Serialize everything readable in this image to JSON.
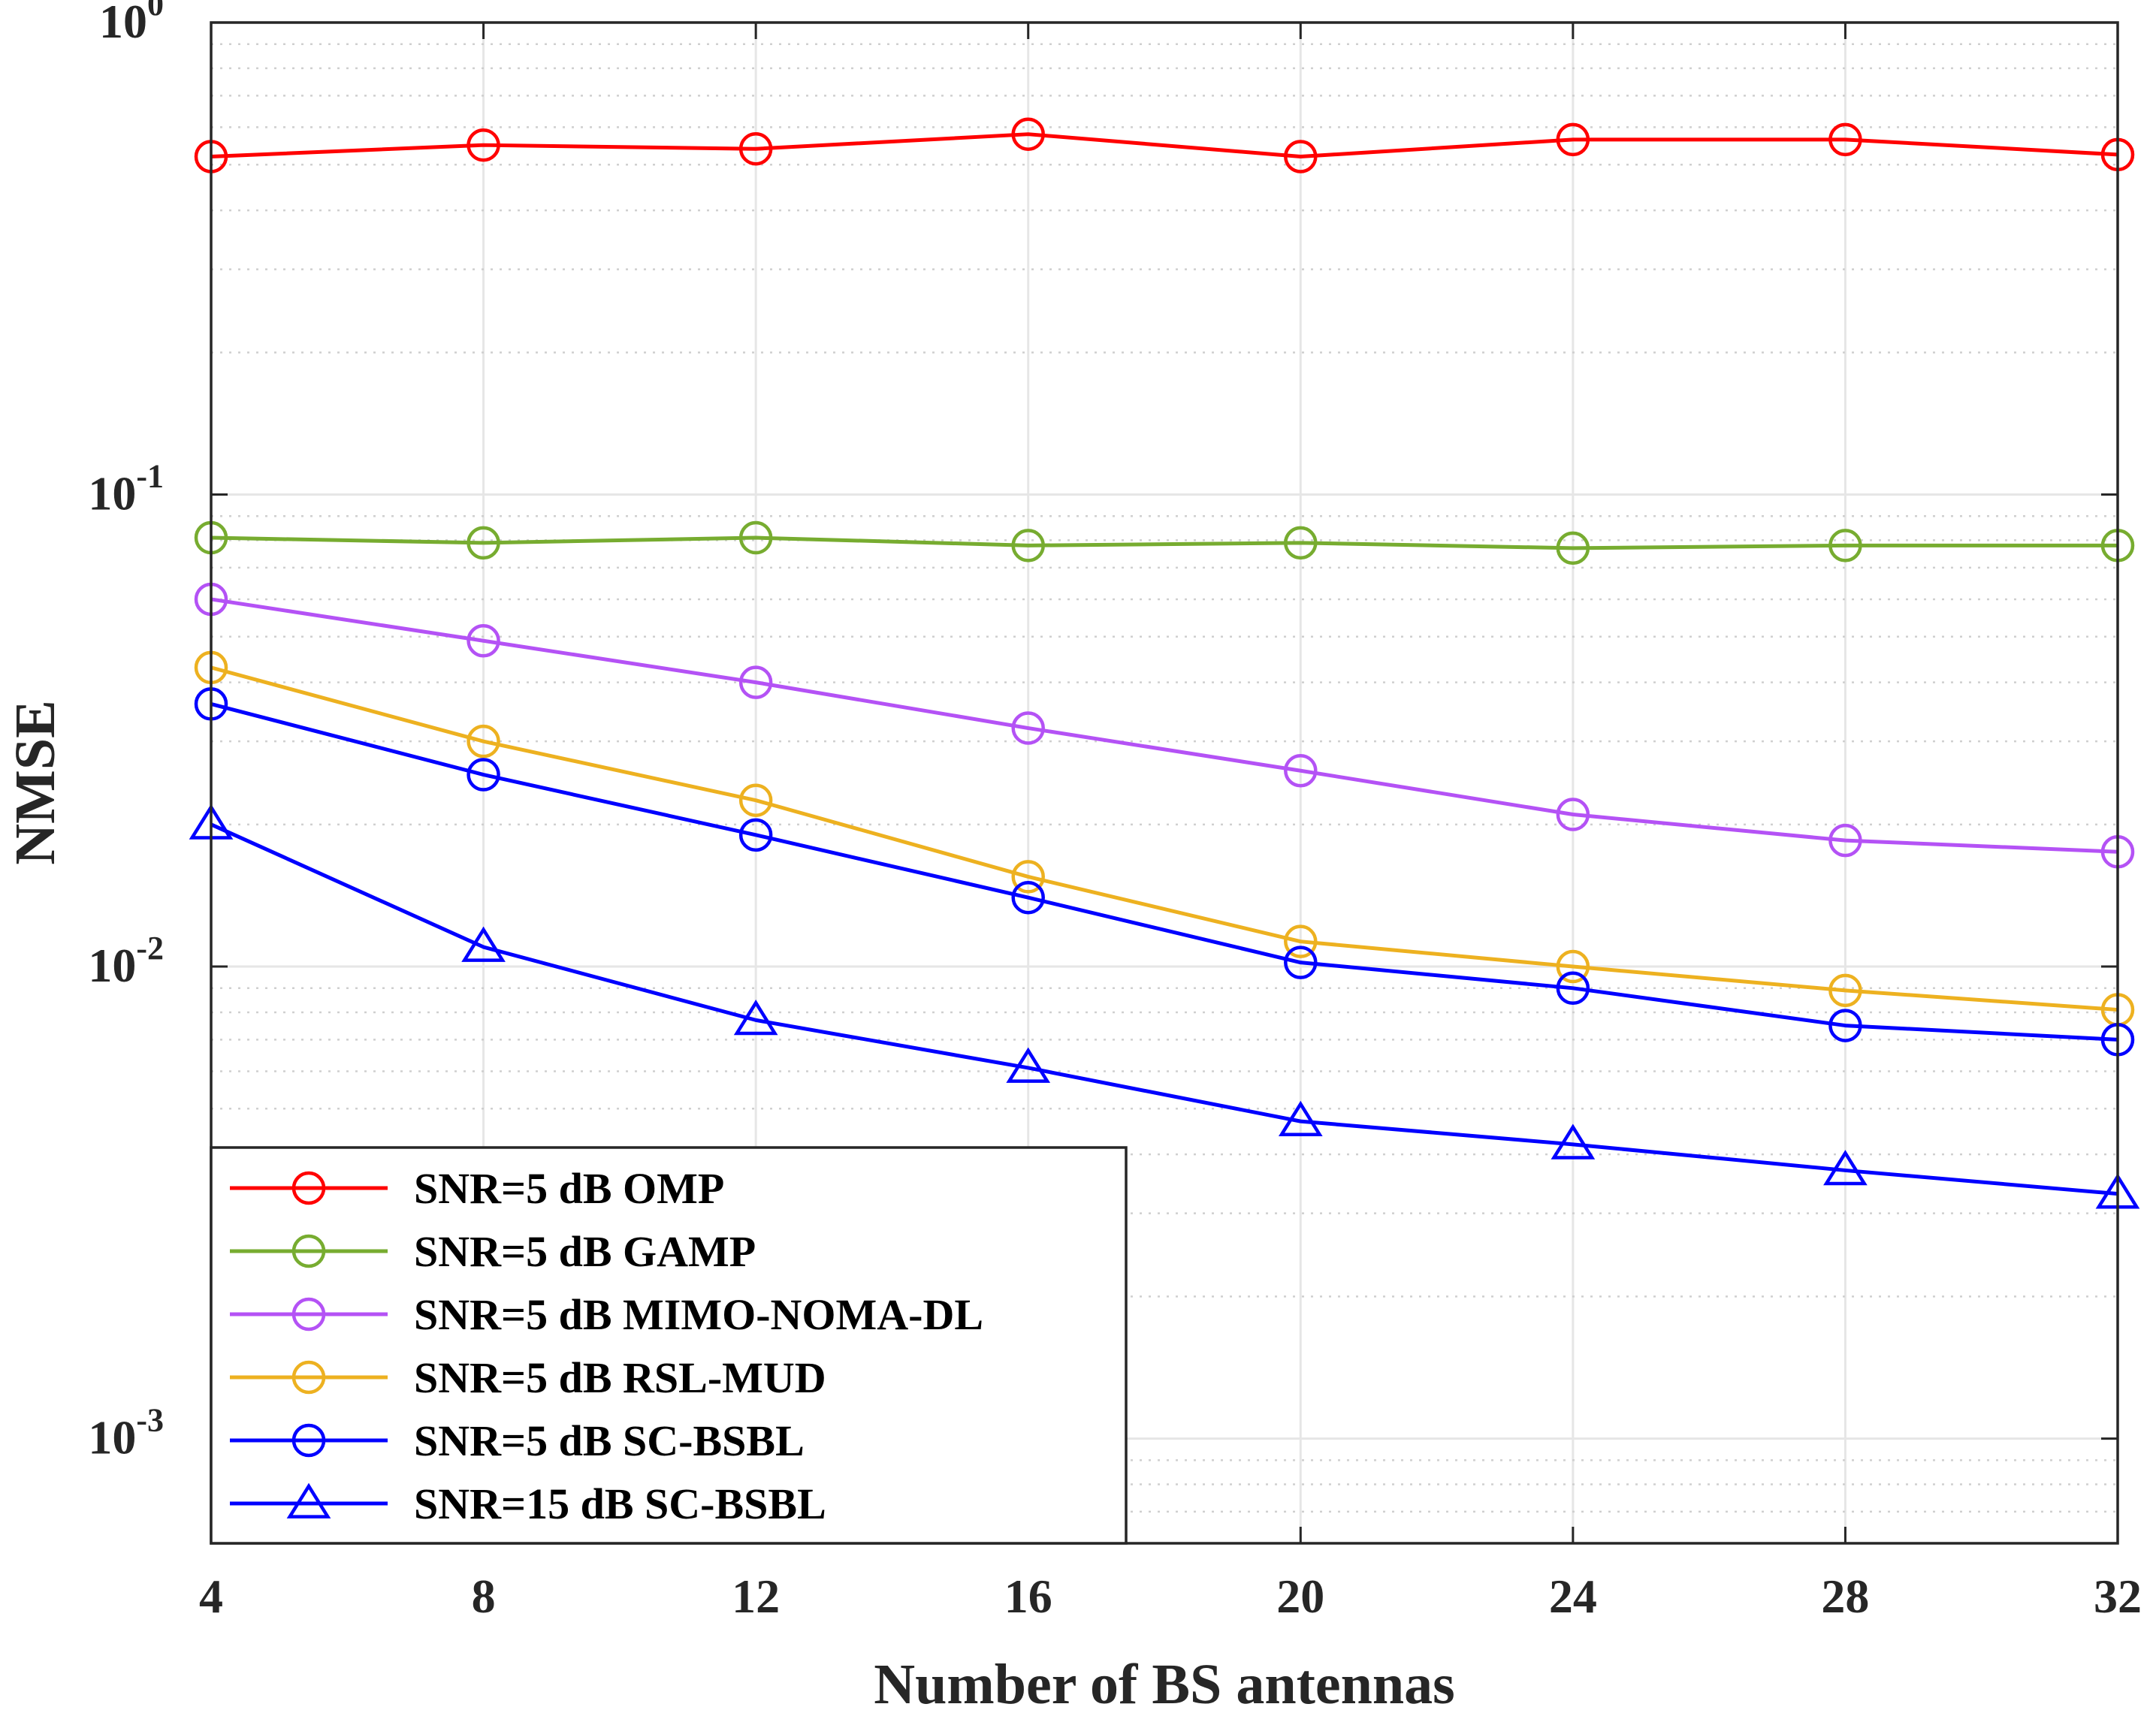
{
  "chart_data": {
    "type": "line",
    "title": "",
    "xlabel": "Number of BS antennas",
    "ylabel": "NMSE",
    "yscale": "log",
    "x": [
      4,
      8,
      12,
      16,
      20,
      24,
      28,
      32
    ],
    "xlim": [
      4,
      32
    ],
    "ylim": [
      0.0006,
      1
    ],
    "xticks": [
      "4",
      "8",
      "12",
      "16",
      "20",
      "24",
      "28",
      "32"
    ],
    "yticks": [
      {
        "base": "10",
        "exp": "0",
        "value": 1
      },
      {
        "base": "10",
        "exp": "-1",
        "value": 0.1
      },
      {
        "base": "10",
        "exp": "-2",
        "value": 0.01
      },
      {
        "base": "10",
        "exp": "-3",
        "value": 0.001
      }
    ],
    "grid": true,
    "legend_position": "bottom-left",
    "series": [
      {
        "name": "SNR=5 dB OMP",
        "color": "#ff0000",
        "marker": "circle",
        "values": [
          0.52,
          0.55,
          0.54,
          0.58,
          0.52,
          0.565,
          0.565,
          0.525
        ]
      },
      {
        "name": "SNR=5 dB GAMP",
        "color": "#77ac30",
        "marker": "circle",
        "values": [
          0.081,
          0.079,
          0.081,
          0.078,
          0.079,
          0.077,
          0.078,
          0.078
        ]
      },
      {
        "name": "SNR=5 dB MIMO-NOMA-DL",
        "color": "#b452f5",
        "marker": "circle",
        "values": [
          0.06,
          0.049,
          0.04,
          0.032,
          0.026,
          0.021,
          0.0185,
          0.0175
        ]
      },
      {
        "name": "SNR=5 dB RSL-MUD",
        "color": "#edb120",
        "marker": "circle",
        "values": [
          0.043,
          0.03,
          0.0225,
          0.0155,
          0.0113,
          0.01,
          0.0089,
          0.0081
        ]
      },
      {
        "name": "SNR=5 dB SC-BSBL",
        "color": "#0000ff",
        "marker": "circle",
        "values": [
          0.036,
          0.0255,
          0.019,
          0.014,
          0.0102,
          0.009,
          0.0075,
          0.007
        ]
      },
      {
        "name": "SNR=15 dB SC-BSBL",
        "color": "#0000ff",
        "marker": "triangle",
        "values": [
          0.02,
          0.011,
          0.0077,
          0.0061,
          0.0047,
          0.0042,
          0.0037,
          0.0033
        ]
      }
    ]
  }
}
